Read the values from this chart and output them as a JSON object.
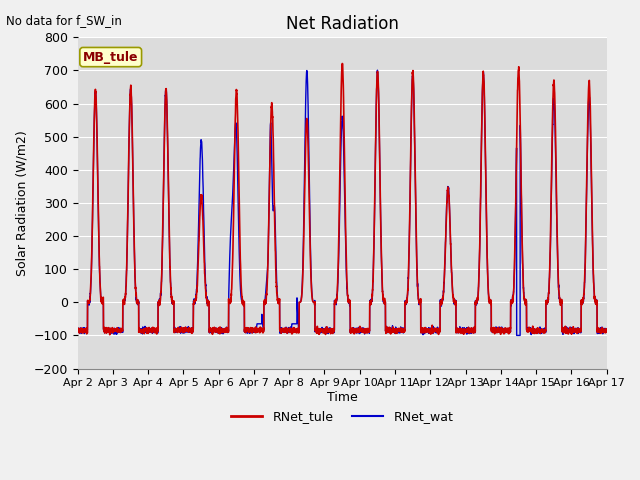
{
  "title": "Net Radiation",
  "xlabel": "Time",
  "ylabel": "Solar Radiation (W/m2)",
  "annotation": "No data for f_SW_in",
  "station_label": "MB_tule",
  "ylim": [
    -200,
    800
  ],
  "yticks": [
    -200,
    -100,
    0,
    100,
    200,
    300,
    400,
    500,
    600,
    700,
    800
  ],
  "xtick_labels": [
    "Apr 2",
    "Apr 3",
    "Apr 4",
    "Apr 5",
    "Apr 6",
    "Apr 7",
    "Apr 8",
    "Apr 9",
    "Apr 10",
    "Apr 11",
    "Apr 12",
    "Apr 13",
    "Apr 14",
    "Apr 15",
    "Apr 16",
    "Apr 17"
  ],
  "legend": [
    {
      "label": "RNet_tule",
      "color": "#cc0000",
      "lw": 1.5
    },
    {
      "label": "RNet_wat",
      "color": "#0000cc",
      "lw": 1.2
    }
  ],
  "bg_color": "#dcdcdc",
  "grid_color": "#ffffff",
  "line_red": "#cc0000",
  "line_blue": "#0000cc",
  "fig_bg": "#f0f0f0"
}
